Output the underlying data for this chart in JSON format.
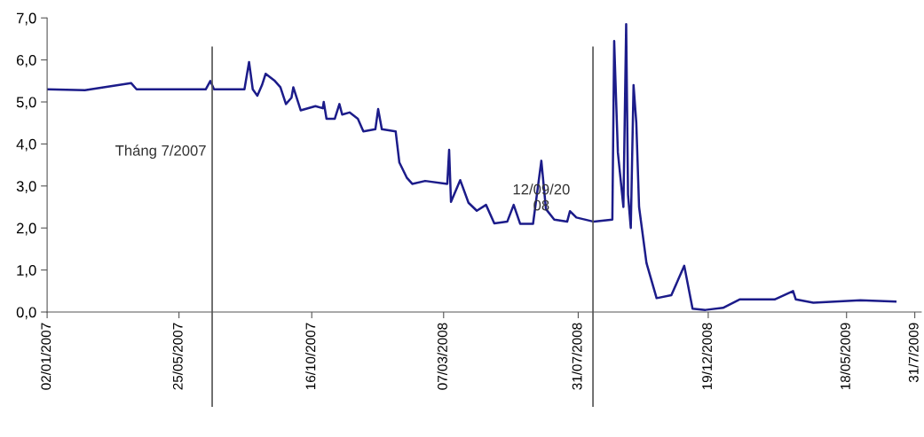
{
  "chart_data": {
    "type": "line",
    "x": [
      "2007-01-02",
      "2007-02-12",
      "2007-04-03",
      "2007-04-09",
      "2007-06-23",
      "2007-06-28",
      "2007-07-02",
      "2007-08-04",
      "2007-08-09",
      "2007-08-13",
      "2007-08-18",
      "2007-08-23",
      "2007-08-27",
      "2007-09-06",
      "2007-09-12",
      "2007-09-18",
      "2007-09-24",
      "2007-09-26",
      "2007-10-04",
      "2007-10-20",
      "2007-10-28",
      "2007-10-29",
      "2007-11-01",
      "2007-11-10",
      "2007-11-15",
      "2007-11-18",
      "2007-11-26",
      "2007-12-05",
      "2007-12-11",
      "2007-12-24",
      "2007-12-27",
      "2007-12-31",
      "2008-01-15",
      "2008-01-19",
      "2008-01-27",
      "2008-02-02",
      "2008-02-16",
      "2008-03-11",
      "2008-03-13",
      "2008-03-15",
      "2008-03-25",
      "2008-04-03",
      "2008-04-12",
      "2008-04-22",
      "2008-05-01",
      "2008-05-15",
      "2008-05-22",
      "2008-05-29",
      "2008-06-12",
      "2008-06-21",
      "2008-06-26",
      "2008-07-05",
      "2008-07-19",
      "2008-07-22",
      "2008-07-29",
      "2008-08-17",
      "2008-09-06",
      "2008-09-08",
      "2008-09-10",
      "2008-09-12",
      "2008-09-18",
      "2008-09-21",
      "2008-09-23",
      "2008-09-26",
      "2008-09-29",
      "2008-10-02",
      "2008-10-05",
      "2008-10-13",
      "2008-10-24",
      "2008-11-09",
      "2008-11-23",
      "2008-12-02",
      "2008-12-16",
      "2009-01-04",
      "2009-01-22",
      "2009-03-01",
      "2009-03-21",
      "2009-03-24",
      "2009-04-12",
      "2009-06-02",
      "2009-07-10"
    ],
    "series": [
      {
        "color": "#1c1c8a",
        "values": [
          5.3,
          5.28,
          5.45,
          5.3,
          5.3,
          5.5,
          5.3,
          5.3,
          5.95,
          5.3,
          5.15,
          5.4,
          5.67,
          5.5,
          5.35,
          4.95,
          5.1,
          5.35,
          4.8,
          4.9,
          4.85,
          5.0,
          4.6,
          4.6,
          4.95,
          4.7,
          4.75,
          4.6,
          4.3,
          4.35,
          4.83,
          4.35,
          4.3,
          3.56,
          3.2,
          3.05,
          3.12,
          3.05,
          3.86,
          2.62,
          3.14,
          2.6,
          2.41,
          2.55,
          2.11,
          2.15,
          2.55,
          2.1,
          2.1,
          3.6,
          2.45,
          2.2,
          2.15,
          2.4,
          2.25,
          2.15,
          2.2,
          6.45,
          5.1,
          3.8,
          2.5,
          6.85,
          2.8,
          2.0,
          5.4,
          4.5,
          2.5,
          1.17,
          0.33,
          0.4,
          1.1,
          0.08,
          0.05,
          0.1,
          0.3,
          0.3,
          0.5,
          0.3,
          0.22,
          0.28,
          0.25
        ]
      }
    ],
    "xlim": [
      "2007-01-02",
      "2009-08-07"
    ],
    "xticks": [
      {
        "value": "2007-01-02",
        "label": "02/01/2007"
      },
      {
        "value": "2007-05-25",
        "label": "25/05/2007"
      },
      {
        "value": "2007-10-16",
        "label": "16/10/2007"
      },
      {
        "value": "2008-03-07",
        "label": "07/03/2008"
      },
      {
        "value": "2008-07-31",
        "label": "31/07/2008"
      },
      {
        "value": "2008-12-19",
        "label": "19/12/2008"
      },
      {
        "value": "2009-05-18",
        "label": "18/05/2009"
      },
      {
        "value": "2009-07-31",
        "label": "31/7/2009"
      }
    ],
    "ylim": [
      0,
      7
    ],
    "yticks": [
      {
        "value": 0,
        "label": "0,0"
      },
      {
        "value": 1,
        "label": "1,0"
      },
      {
        "value": 2,
        "label": "2,0"
      },
      {
        "value": 3,
        "label": "3,0"
      },
      {
        "value": 4,
        "label": "4,0"
      },
      {
        "value": 5,
        "label": "5,0"
      },
      {
        "value": 6,
        "label": "6,0"
      },
      {
        "value": 7,
        "label": "7,0"
      }
    ],
    "ref_lines": [
      {
        "axis": "x",
        "value": "2007-06-30",
        "color": "#555555"
      },
      {
        "axis": "x",
        "value": "2008-08-16",
        "color": "#555555"
      }
    ],
    "annotations": [
      "Tháng 7/2007",
      {
        "text": "12/09/20\n08",
        "x": "2008-06-21",
        "y": 2.7
      }
    ],
    "grid": false,
    "legend": false,
    "marker": "none",
    "line_style": "solid"
  }
}
